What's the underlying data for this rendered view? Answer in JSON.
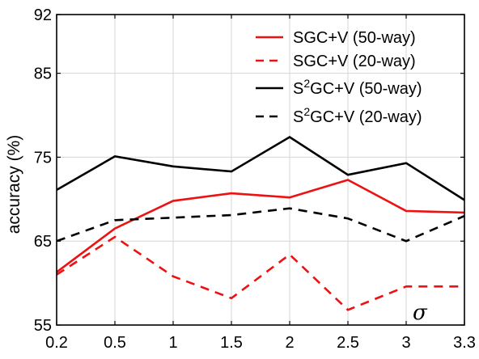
{
  "chart_data": {
    "type": "line",
    "title": "",
    "xlabel": "σ",
    "ylabel": "accuracy (%)",
    "x": [
      0.2,
      0.5,
      1,
      1.5,
      2,
      2.5,
      3,
      3.3
    ],
    "x_tick_labels": [
      "0.2",
      "0.5",
      "1",
      "1.5",
      "2",
      "2.5",
      "3",
      "3.3"
    ],
    "y_ticks": [
      55,
      65,
      75,
      85,
      92
    ],
    "y_tick_labels": [
      "55",
      "65",
      "75",
      "85",
      "92"
    ],
    "ylim": [
      55,
      92
    ],
    "grid": true,
    "legend_position": "top-right",
    "series": [
      {
        "name": "SGC+V (50-way)",
        "name_parts": {
          "pre": "SGC+V (50-way)",
          "sup": "",
          "post": ""
        },
        "color": "#ee1111",
        "dash": "solid",
        "values": [
          61.3,
          66.5,
          69.8,
          70.7,
          70.2,
          72.3,
          68.6,
          68.4
        ]
      },
      {
        "name": "SGC+V (20-way)",
        "name_parts": {
          "pre": "SGC+V (20-way)",
          "sup": "",
          "post": ""
        },
        "color": "#ee1111",
        "dash": "dashed",
        "values": [
          61.0,
          65.5,
          60.8,
          58.2,
          63.4,
          56.8,
          59.6,
          59.6
        ]
      },
      {
        "name": "S2GC+V (50-way)",
        "name_parts": {
          "pre": "S",
          "sup": "2",
          "post": "GC+V (50-way)"
        },
        "color": "#000000",
        "dash": "solid",
        "values": [
          71.1,
          75.1,
          73.9,
          73.3,
          77.4,
          72.9,
          74.3,
          69.9
        ]
      },
      {
        "name": "S2GC+V (20-way)",
        "name_parts": {
          "pre": "S",
          "sup": "2",
          "post": "GC+V (20-way)"
        },
        "color": "#000000",
        "dash": "dashed",
        "values": [
          65.0,
          67.5,
          67.8,
          68.1,
          68.9,
          67.7,
          65.0,
          68.0
        ]
      }
    ]
  }
}
